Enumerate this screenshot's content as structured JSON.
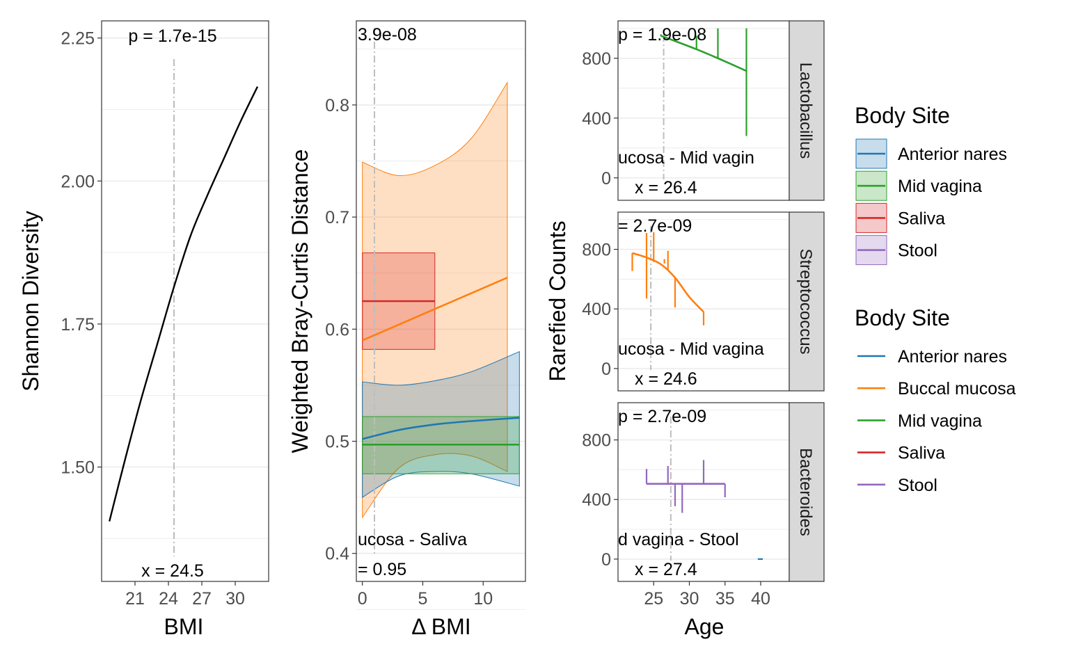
{
  "colors": {
    "Anterior nares": "#1f77b4",
    "Buccal mucosa": "#ff7f0e",
    "Mid vagina": "#2ca02c",
    "Saliva": "#d62728",
    "Stool": "#9467bd",
    "curve": "#000000",
    "grid": "#ebebeb",
    "strip_fill": "#d9d9d9",
    "vline": "#bdbdbd"
  },
  "chart_data": [
    {
      "type": "line",
      "xlabel": "BMI",
      "ylabel": "Shannon Diversity",
      "xlim": [
        18,
        33
      ],
      "ylim": [
        1.3,
        2.28
      ],
      "xticks": [
        21,
        24,
        27,
        30
      ],
      "yticks": [
        1.5,
        1.75,
        2.0,
        2.25
      ],
      "ytick_labels": [
        "1.50",
        "1.75",
        "2.00",
        "2.25"
      ],
      "series": [
        {
          "x": [
            18.7,
            20.0,
            21.5,
            23.0,
            24.5,
            26.0,
            27.5,
            29.0,
            30.5,
            32.0
          ],
          "y": [
            1.405,
            1.505,
            1.615,
            1.715,
            1.815,
            1.905,
            1.975,
            2.04,
            2.105,
            2.165
          ]
        }
      ],
      "vline_x": 24.5,
      "annotations": {
        "top": "p = 1.7e-15",
        "bottom": "x = 24.5"
      }
    },
    {
      "type": "line",
      "xlabel": "Δ BMI",
      "ylabel": "Weighted Bray-Curtis Distance",
      "xlim": [
        -0.5,
        13.5
      ],
      "ylim": [
        0.375,
        0.875
      ],
      "xticks": [
        0,
        5,
        10
      ],
      "yticks": [
        0.4,
        0.5,
        0.6,
        0.7,
        0.8
      ],
      "ytick_labels": [
        "0.4",
        "0.5",
        "0.6",
        "0.7",
        "0.8"
      ],
      "series": [
        {
          "color_key": "Buccal mucosa",
          "x": [
            0,
            12
          ],
          "y": [
            0.59,
            0.646
          ],
          "band_x": [
            0,
            3,
            6,
            9,
            12
          ],
          "band_lower": [
            0.432,
            0.476,
            0.488,
            0.487,
            0.473
          ],
          "band_upper": [
            0.749,
            0.737,
            0.746,
            0.77,
            0.82
          ]
        },
        {
          "color_key": "Anterior nares",
          "x": [
            0,
            3,
            6,
            9,
            13
          ],
          "y": [
            0.502,
            0.51,
            0.515,
            0.518,
            0.521
          ],
          "band_x": [
            0,
            3,
            6,
            9,
            13
          ],
          "band_lower": [
            0.45,
            0.469,
            0.473,
            0.471,
            0.46
          ],
          "band_upper": [
            0.553,
            0.55,
            0.554,
            0.562,
            0.58
          ]
        },
        {
          "color_key": "Mid vagina",
          "x": [
            0,
            13
          ],
          "y": [
            0.497,
            0.497
          ],
          "band_x": [
            0,
            13
          ],
          "band_lower": [
            0.471,
            0.471
          ],
          "band_upper": [
            0.522,
            0.522
          ]
        },
        {
          "color_key": "Saliva",
          "x": [
            0,
            6
          ],
          "y": [
            0.625,
            0.625
          ],
          "band_x": [
            0,
            6
          ],
          "band_lower": [
            0.582,
            0.582
          ],
          "band_upper": [
            0.668,
            0.668
          ]
        }
      ],
      "vline_x": 1,
      "annotations": {
        "top": "3.9e-08",
        "mid": "ucosa - Saliva",
        "bottom": "= 0.95"
      }
    },
    {
      "type": "line",
      "xlabel": "Age",
      "ylabel": "Rarefied Counts",
      "xlim": [
        20,
        44
      ],
      "ylim": [
        -150,
        1050
      ],
      "xticks": [
        25,
        30,
        35,
        40
      ],
      "yticks": [
        0,
        400,
        800
      ],
      "facets": [
        {
          "strip": "Lactobacillus",
          "color_key": "Mid vagina",
          "x": [
            26,
            28,
            31,
            34,
            38
          ],
          "y": [
            950,
            915,
            860,
            800,
            715
          ],
          "error_bars": [
            {
              "x": 26,
              "low": 950,
              "high": 960
            },
            {
              "x": 31,
              "low": 860,
              "high": 950
            },
            {
              "x": 34,
              "low": 800,
              "high": 1000
            },
            {
              "x": 38,
              "low": 280,
              "high": 1000
            }
          ],
          "vline_x": 26.4,
          "annotations": {
            "top": "p = 1.9e-08",
            "mid": "ucosa - Mid vagin",
            "bottom": "x = 26.4"
          }
        },
        {
          "strip": "Streptococcus",
          "color_key": "Buccal mucosa",
          "x": [
            22,
            24,
            26,
            28,
            30,
            32
          ],
          "y": [
            775,
            745,
            700,
            610,
            480,
            380
          ],
          "error_bars": [
            {
              "x": 22,
              "low": 655,
              "high": 775
            },
            {
              "x": 24,
              "low": 470,
              "high": 910
            },
            {
              "x": 25,
              "low": 715,
              "high": 915
            },
            {
              "x": 26.5,
              "low": 705,
              "high": 735
            },
            {
              "x": 27,
              "low": 665,
              "high": 790
            },
            {
              "x": 28,
              "low": 410,
              "high": 610
            },
            {
              "x": 32,
              "low": 290,
              "high": 380
            }
          ],
          "vline_x": 24.6,
          "annotations": {
            "top": "= 2.7e-09",
            "mid": "ucosa - Mid vagina",
            "bottom": "x = 24.6"
          }
        },
        {
          "strip": "Bacteroides",
          "color_key": "Stool",
          "x": [
            24,
            35
          ],
          "y": [
            505,
            505
          ],
          "error_bars": [
            {
              "x": 24,
              "low": 505,
              "high": 605
            },
            {
              "x": 27,
              "low": 505,
              "high": 625
            },
            {
              "x": 28,
              "low": 355,
              "high": 505
            },
            {
              "x": 29,
              "low": 310,
              "high": 505
            },
            {
              "x": 32,
              "low": 505,
              "high": 665
            },
            {
              "x": 35,
              "low": 415,
              "high": 505
            }
          ],
          "vline_x": 27.4,
          "annotations": {
            "top": "p = 2.7e-09",
            "mid": "d vagina - Stool",
            "bottom": "x = 27.4"
          }
        }
      ],
      "extra_segment": {
        "color_key": "Anterior nares",
        "x": [
          39.6,
          40.3
        ],
        "y": [
          0,
          0
        ]
      }
    }
  ],
  "legends": [
    {
      "title": "Body Site",
      "style": "fill",
      "entries": [
        "Anterior nares",
        "Mid vagina",
        "Saliva",
        "Stool"
      ]
    },
    {
      "title": "Body Site",
      "style": "line",
      "entries": [
        "Anterior nares",
        "Buccal mucosa",
        "Mid vagina",
        "Saliva",
        "Stool"
      ]
    }
  ]
}
